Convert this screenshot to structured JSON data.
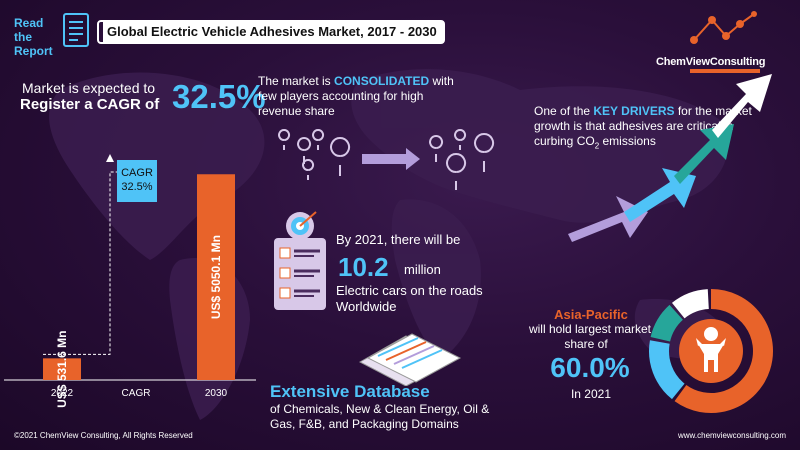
{
  "header": {
    "read_line1": "Read the",
    "read_line2": "Report",
    "title": "Global Electric Vehicle Adhesives Market, 2017  - 2030"
  },
  "logo": {
    "name": "ChemViewConsulting"
  },
  "cagr_claim": {
    "line1": "Market is expected to",
    "line2": "Register a CAGR of",
    "value": "32.5%"
  },
  "consolidated": {
    "part1": "The market is ",
    "highlight": "CONSOLIDATED",
    "part2": " with few players accounting for high revenue share"
  },
  "drivers": {
    "part1": "One of the ",
    "highlight": "KEY DRIVERS",
    "part2": " for the market growth is that adhesives are critical in curbing CO",
    "sub": "2",
    "part3": " emissions"
  },
  "ev_cars": {
    "line1": "By 2021, there will be",
    "number": "10.2",
    "unit": "million",
    "line2": "Electric cars on the roads Worldwide"
  },
  "database": {
    "title": "Extensive Database",
    "subtitle": "of Chemicals, New & Clean Energy, Oil & Gas, F&B, and Packaging Domains"
  },
  "asia": {
    "region": "Asia-Pacific",
    "line2": "will hold largest market",
    "line3": "share of",
    "pct": "60.0%",
    "year": "In 2021",
    "share_fraction": 0.6
  },
  "chart_data": {
    "type": "bar",
    "categories": [
      "2022",
      "CAGR",
      "2030"
    ],
    "values": [
      531.6,
      null,
      5050.1
    ],
    "bar_labels": [
      "US$ 531.6 Mn",
      "",
      "US$ 5050.1 Mn"
    ],
    "cagr_label": "CAGR",
    "cagr_value": "32.5%",
    "ylim": [
      0,
      5400
    ],
    "bar_color": "#e8632a"
  },
  "footer": {
    "left": "©2021  ChemView  Consulting,  All Rights Reserved",
    "right": "www.chemviewconsulting.com"
  },
  "colors": {
    "accent": "#4fc3f7",
    "orange": "#e8632a",
    "background": "#2a0f3a"
  }
}
